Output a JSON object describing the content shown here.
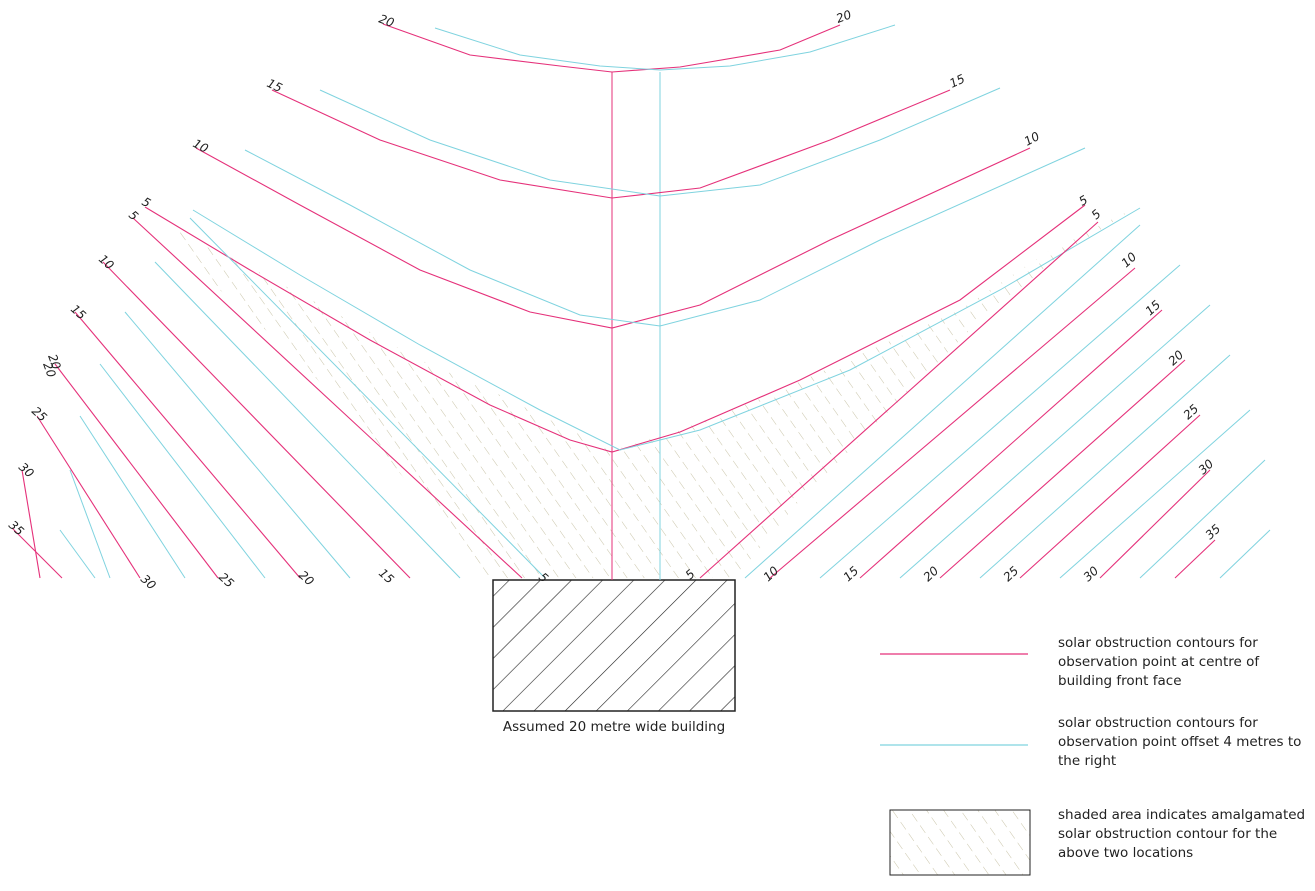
{
  "colors": {
    "primary_contour": "#e5317a",
    "offset_contour": "#7fd3df",
    "building": "#222222",
    "shade": "#c9c4a8"
  },
  "contour_labels": {
    "upper_left": [
      "20",
      "15",
      "10",
      "5"
    ],
    "upper_right": [
      "20",
      "15",
      "10",
      "5"
    ],
    "left_side": [
      "5",
      "10",
      "15",
      "20",
      "20",
      "25",
      "30",
      "35"
    ],
    "right_side": [
      "5",
      "10",
      "15",
      "20",
      "25",
      "30",
      "35"
    ],
    "bottom": [
      "30",
      "25",
      "20",
      "15",
      "5",
      "5",
      "10",
      "15",
      "20",
      "25",
      "30"
    ]
  },
  "building": {
    "caption": "Assumed 20 metre wide building"
  },
  "legend": {
    "primary": "solar obstruction contours for observation point at centre of building front face",
    "offset": "solar obstruction contours for observation point offset 4 metres to the right",
    "shaded": "shaded area indicates amalgamated solar obstruction contour for the above two locations"
  }
}
